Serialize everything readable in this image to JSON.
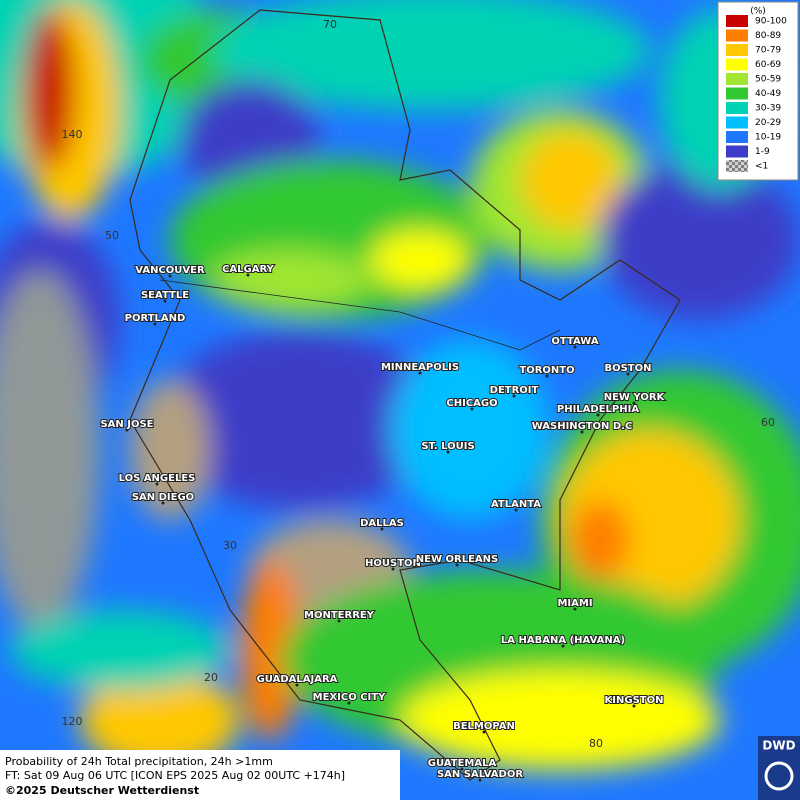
{
  "legend": {
    "unit": "(%)",
    "items": [
      {
        "label": "90-100",
        "color": "#c80000"
      },
      {
        "label": "80-89",
        "color": "#ff7d00"
      },
      {
        "label": "70-79",
        "color": "#ffc800"
      },
      {
        "label": "60-69",
        "color": "#ffff00"
      },
      {
        "label": "50-59",
        "color": "#a0e632"
      },
      {
        "label": "40-49",
        "color": "#32c832"
      },
      {
        "label": "30-39",
        "color": "#00d2b4"
      },
      {
        "label": "20-29",
        "color": "#00beff"
      },
      {
        "label": "10-19",
        "color": "#1e78ff"
      },
      {
        "label": "1-9",
        "color": "#3c3cc8"
      },
      {
        "label": "<1",
        "color": "#a0a0a0"
      }
    ]
  },
  "graticule_labels": [
    "70",
    "140",
    "50",
    "60",
    "30",
    "20",
    "120",
    "80"
  ],
  "cities": [
    "VANCOUVER",
    "CALGARY",
    "SEATTLE",
    "PORTLAND",
    "MINNEAPOLIS",
    "OTTAWA",
    "TORONTO",
    "DETROIT",
    "BOSTON",
    "NEW YORK",
    "PHILADELPHIA",
    "CHICAGO",
    "WASHINGTON D.C",
    "SAN JOSE",
    "ST. LOUIS",
    "LOS ANGELES",
    "SAN DIEGO",
    "ATLANTA",
    "DALLAS",
    "HOUSTON",
    "NEW ORLEANS",
    "MIAMI",
    "MONTERREY",
    "LA HABANA (HAVANA)",
    "GUADALAJARA",
    "MEXICO CITY",
    "KINGSTON",
    "BELMOPAN",
    "GUATEMALA",
    "SAN SALVADOR"
  ],
  "caption": {
    "line1": "Probability of 24h Total precipitation, 24h >1mm",
    "line2": "FT: Sat 09 Aug 06 UTC [ICON EPS 2025 Aug 02 00UTC +174h]",
    "line3": "©2025 Deutscher Wetterdienst"
  },
  "logo": "DWD"
}
